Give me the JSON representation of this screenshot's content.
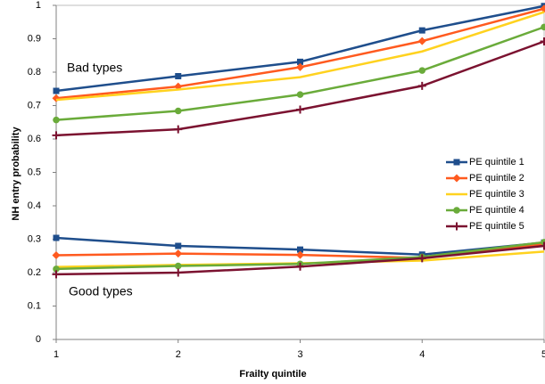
{
  "chart_data": {
    "type": "line",
    "x_label": "Frailty quintile",
    "y_label": "NH entry probability",
    "annotations": [
      "Bad types",
      "Good types"
    ],
    "x": [
      1,
      2,
      3,
      4,
      5
    ],
    "xlim": [
      1,
      5
    ],
    "xticks": [
      1,
      2,
      3,
      4,
      5
    ],
    "ylim": [
      0,
      1
    ],
    "yticks": [
      0,
      0.1,
      0.2,
      0.3,
      0.4,
      0.5,
      0.6,
      0.7,
      0.8,
      0.9,
      1
    ],
    "legend": "right",
    "series": [
      {
        "name": "PE quintile 1",
        "color": "#1f4e8c",
        "marker": "square",
        "values": [
          0.744,
          0.788,
          0.831,
          0.925,
          0.998
        ],
        "good_values": [
          0.304,
          0.28,
          0.269,
          0.254,
          0.29
        ]
      },
      {
        "name": "PE quintile 2",
        "color": "#ff5a1f",
        "marker": "diamond",
        "values": [
          0.722,
          0.757,
          0.815,
          0.893,
          0.99
        ],
        "good_values": [
          0.252,
          0.257,
          0.253,
          0.244,
          0.285
        ]
      },
      {
        "name": "PE quintile 3",
        "color": "#ffd21f",
        "marker": "none",
        "values": [
          0.717,
          0.748,
          0.785,
          0.862,
          0.98
        ],
        "good_values": [
          0.217,
          0.223,
          0.228,
          0.236,
          0.263
        ]
      },
      {
        "name": "PE quintile 4",
        "color": "#6aab3a",
        "marker": "circle",
        "values": [
          0.657,
          0.684,
          0.733,
          0.805,
          0.935
        ],
        "good_values": [
          0.211,
          0.22,
          0.226,
          0.247,
          0.291
        ]
      },
      {
        "name": "PE quintile 5",
        "color": "#7b1230",
        "marker": "plus",
        "values": [
          0.611,
          0.629,
          0.688,
          0.759,
          0.892
        ],
        "good_values": [
          0.195,
          0.2,
          0.218,
          0.243,
          0.28
        ]
      }
    ]
  }
}
